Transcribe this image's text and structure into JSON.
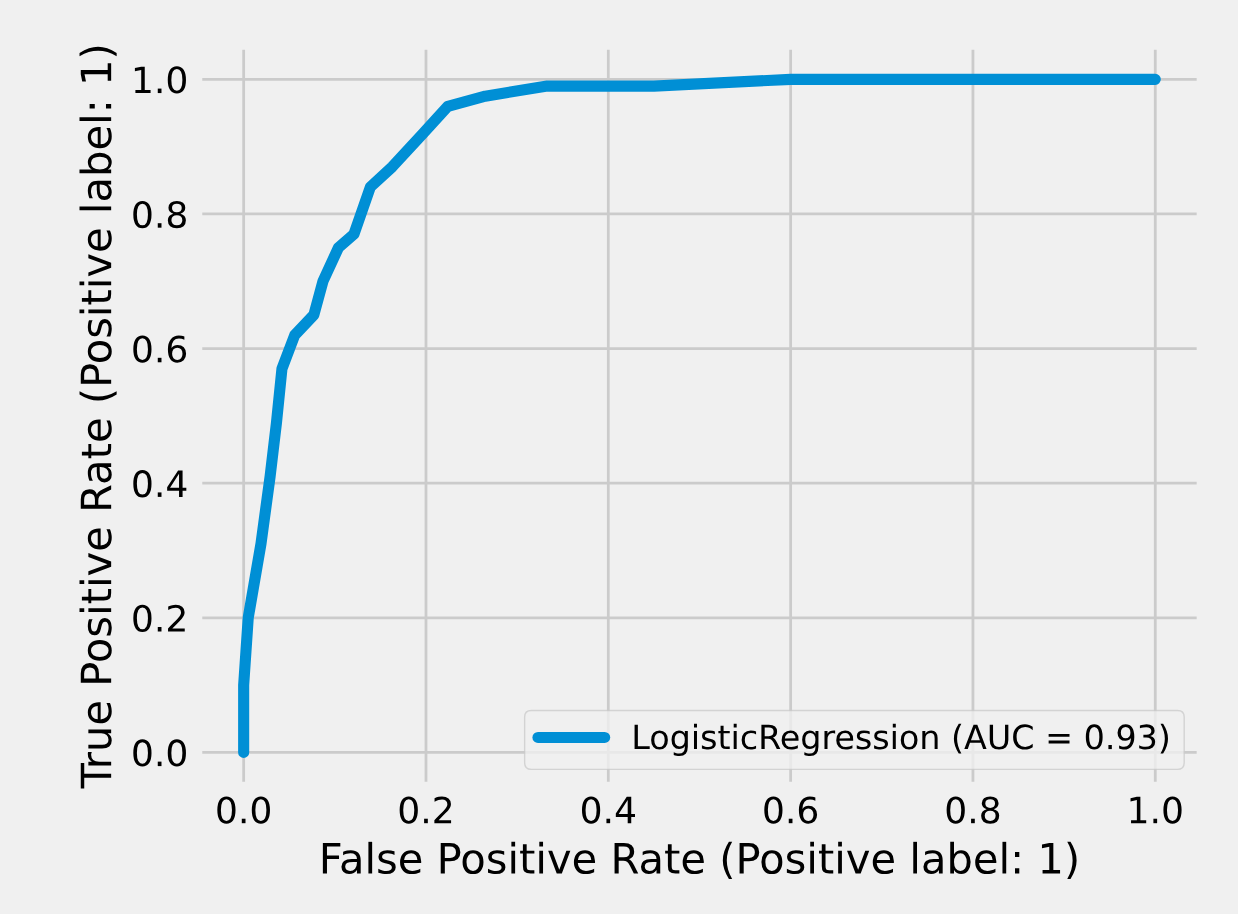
{
  "chart_data": {
    "type": "line",
    "xlabel": "False Positive Rate (Positive label: 1)",
    "ylabel": "True Positive Rate (Positive label: 1)",
    "series": [
      {
        "name": "LogisticRegression (AUC = 0.93)",
        "color": "#008fd5",
        "x": [
          0,
          0,
          0.005,
          0.019,
          0.029,
          0.036,
          0.042,
          0.056,
          0.077,
          0.087,
          0.104,
          0.121,
          0.139,
          0.163,
          0.197,
          0.224,
          0.265,
          0.333,
          0.45,
          0.6,
          1.0
        ],
        "values": [
          0,
          0.1,
          0.2,
          0.31,
          0.41,
          0.49,
          0.57,
          0.62,
          0.65,
          0.7,
          0.75,
          0.77,
          0.84,
          0.87,
          0.92,
          0.96,
          0.975,
          0.99,
          0.99,
          1.0,
          1.0
        ]
      }
    ],
    "xlim": [
      -0.05,
      1.05
    ],
    "ylim": [
      -0.05,
      1.05
    ],
    "xticks": [
      {
        "value": 0,
        "label": "0.0"
      },
      {
        "value": 0.2,
        "label": "0.2"
      },
      {
        "value": 0.4,
        "label": "0.4"
      },
      {
        "value": 0.6,
        "label": "0.6"
      },
      {
        "value": 0.8,
        "label": "0.8"
      },
      {
        "value": 1.0,
        "label": "1.0"
      }
    ],
    "yticks": [
      {
        "value": 0,
        "label": "0.0"
      },
      {
        "value": 0.2,
        "label": "0.2"
      },
      {
        "value": 0.4,
        "label": "0.4"
      },
      {
        "value": 0.6,
        "label": "0.6"
      },
      {
        "value": 0.8,
        "label": "0.8"
      },
      {
        "value": 1.0,
        "label": "1.0"
      }
    ],
    "grid": true,
    "legend": "lower right"
  }
}
